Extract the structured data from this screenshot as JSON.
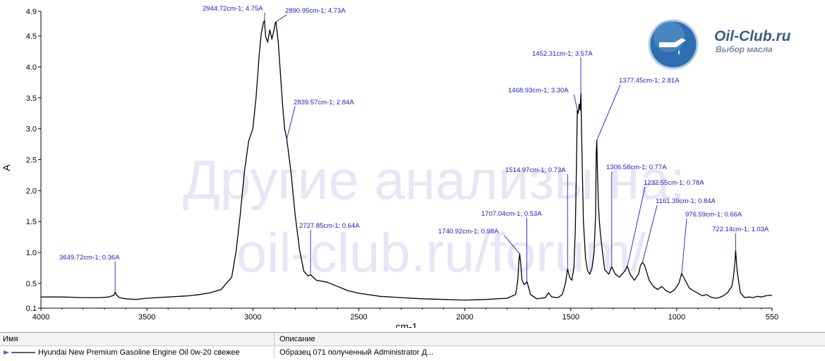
{
  "chart_data": {
    "type": "line",
    "xlabel": "cm-1",
    "ylabel": "A",
    "xlim": [
      4000,
      550
    ],
    "ylim": [
      0.1,
      4.9
    ],
    "x_reversed": true,
    "x_ticks": [
      4000,
      3500,
      3000,
      2500,
      2000,
      1500,
      1000,
      550
    ],
    "y_ticks": [
      0.1,
      0.5,
      1.0,
      1.5,
      2.0,
      2.5,
      3.0,
      3.5,
      4.0,
      4.5,
      4.9
    ],
    "y_tick_labels": [
      "0.1",
      "0.5",
      "1.0",
      "1.5",
      "2.0",
      "2.5",
      "3.0",
      "3.5",
      "4.0",
      "4.5",
      "4.9"
    ],
    "grid": false,
    "series": [
      {
        "name": "Hyundai New Premium Gasoline Engine Oil 0w-20 свежее",
        "color": "#000000",
        "x": [
          4000,
          3900,
          3800,
          3720,
          3680,
          3655,
          3650,
          3645,
          3630,
          3600,
          3550,
          3500,
          3400,
          3300,
          3250,
          3200,
          3150,
          3100,
          3080,
          3060,
          3040,
          3020,
          3000,
          2985,
          2970,
          2960,
          2950,
          2945,
          2940,
          2930,
          2920,
          2910,
          2900,
          2895,
          2891,
          2880,
          2870,
          2860,
          2850,
          2840,
          2820,
          2800,
          2780,
          2760,
          2740,
          2728,
          2715,
          2700,
          2650,
          2600,
          2550,
          2500,
          2400,
          2300,
          2200,
          2100,
          2000,
          1900,
          1800,
          1760,
          1750,
          1745,
          1741,
          1737,
          1730,
          1720,
          1712,
          1707,
          1700,
          1690,
          1660,
          1620,
          1605,
          1590,
          1560,
          1540,
          1525,
          1515,
          1505,
          1495,
          1485,
          1478,
          1472,
          1469,
          1465,
          1460,
          1456,
          1452,
          1448,
          1440,
          1430,
          1420,
          1410,
          1400,
          1390,
          1383,
          1380,
          1377,
          1374,
          1370,
          1365,
          1360,
          1350,
          1340,
          1320,
          1307,
          1290,
          1270,
          1245,
          1233,
          1220,
          1200,
          1180,
          1170,
          1161,
          1150,
          1130,
          1110,
          1090,
          1070,
          1050,
          1030,
          1010,
          990,
          977,
          960,
          940,
          920,
          900,
          880,
          860,
          840,
          820,
          800,
          780,
          760,
          740,
          732,
          725,
          722,
          715,
          700,
          680,
          660,
          640,
          620,
          600,
          580,
          560,
          550
        ],
        "y": [
          0.28,
          0.28,
          0.27,
          0.27,
          0.28,
          0.31,
          0.36,
          0.32,
          0.27,
          0.25,
          0.24,
          0.26,
          0.28,
          0.3,
          0.32,
          0.35,
          0.4,
          0.6,
          1.0,
          1.6,
          2.3,
          2.8,
          3.0,
          3.5,
          4.2,
          4.55,
          4.72,
          4.75,
          4.5,
          4.4,
          4.6,
          4.45,
          4.6,
          4.7,
          4.73,
          4.4,
          3.9,
          3.4,
          3.0,
          2.84,
          2.3,
          1.6,
          1.05,
          0.7,
          0.62,
          0.64,
          0.6,
          0.55,
          0.52,
          0.45,
          0.38,
          0.34,
          0.29,
          0.27,
          0.25,
          0.24,
          0.23,
          0.24,
          0.26,
          0.32,
          0.55,
          0.85,
          0.98,
          0.85,
          0.55,
          0.48,
          0.5,
          0.53,
          0.45,
          0.32,
          0.25,
          0.27,
          0.35,
          0.28,
          0.27,
          0.32,
          0.5,
          0.73,
          0.6,
          0.55,
          0.75,
          1.4,
          2.6,
          3.3,
          3.25,
          3.4,
          3.3,
          3.57,
          2.8,
          1.5,
          0.9,
          0.7,
          0.65,
          0.75,
          1.0,
          1.6,
          2.6,
          2.81,
          2.3,
          1.8,
          1.5,
          1.3,
          1.0,
          0.72,
          0.65,
          0.77,
          0.65,
          0.6,
          0.7,
          0.78,
          0.65,
          0.55,
          0.65,
          0.8,
          0.84,
          0.78,
          0.55,
          0.45,
          0.4,
          0.45,
          0.38,
          0.35,
          0.4,
          0.5,
          0.66,
          0.55,
          0.42,
          0.38,
          0.34,
          0.3,
          0.32,
          0.28,
          0.26,
          0.27,
          0.3,
          0.35,
          0.45,
          0.6,
          0.85,
          1.03,
          0.7,
          0.35,
          0.27,
          0.28,
          0.27,
          0.29,
          0.28,
          0.3,
          0.31,
          0.3
        ]
      }
    ],
    "annotations": [
      {
        "label": "3649.72cm-1; 0.36A",
        "x": 3649.72,
        "y": 0.36
      },
      {
        "label": "2944.72cm-1; 4.75A",
        "x": 2944.72,
        "y": 4.75
      },
      {
        "label": "2890.95cm-1; 4.73A",
        "x": 2890.95,
        "y": 4.73
      },
      {
        "label": "2839.57cm-1; 2.84A",
        "x": 2839.57,
        "y": 2.84
      },
      {
        "label": "2727.85cm-1; 0.64A",
        "x": 2727.85,
        "y": 0.64
      },
      {
        "label": "1740.92cm-1; 0.98A",
        "x": 1740.92,
        "y": 0.98
      },
      {
        "label": "1707.04cm-1; 0.53A",
        "x": 1707.04,
        "y": 0.53
      },
      {
        "label": "1514.97cm-1; 0.73A",
        "x": 1514.97,
        "y": 0.73
      },
      {
        "label": "1468.93cm-1; 3.30A",
        "x": 1468.93,
        "y": 3.3
      },
      {
        "label": "1452.31cm-1; 3.57A",
        "x": 1452.31,
        "y": 3.57
      },
      {
        "label": "1377.45cm-1; 2.81A",
        "x": 1377.45,
        "y": 2.81
      },
      {
        "label": "1306.58cm-1; 0.77A",
        "x": 1306.58,
        "y": 0.77
      },
      {
        "label": "1232.55cm-1; 0.78A",
        "x": 1232.55,
        "y": 0.78
      },
      {
        "label": "1161.39cm-1; 0.84A",
        "x": 1161.39,
        "y": 0.84
      },
      {
        "label": "976.59cm-1; 0.66A",
        "x": 976.59,
        "y": 0.66
      },
      {
        "label": "722.14cm-1; 1.03A",
        "x": 722.14,
        "y": 1.03
      }
    ]
  },
  "watermark": {
    "line1": "Другие анализы на:",
    "line2": "oil-club.ru/forum/"
  },
  "logo": {
    "title": "Oil-Club.ru",
    "subtitle": "Выбор масла"
  },
  "legend_table": {
    "headers": {
      "name": "Имя",
      "description": "Описание"
    },
    "rows": [
      {
        "name": "Hyundai New Premium Gasoline Engine Oil 0w-20 свежее",
        "description": "Образец 071 полученный Administrator Д..."
      }
    ]
  }
}
